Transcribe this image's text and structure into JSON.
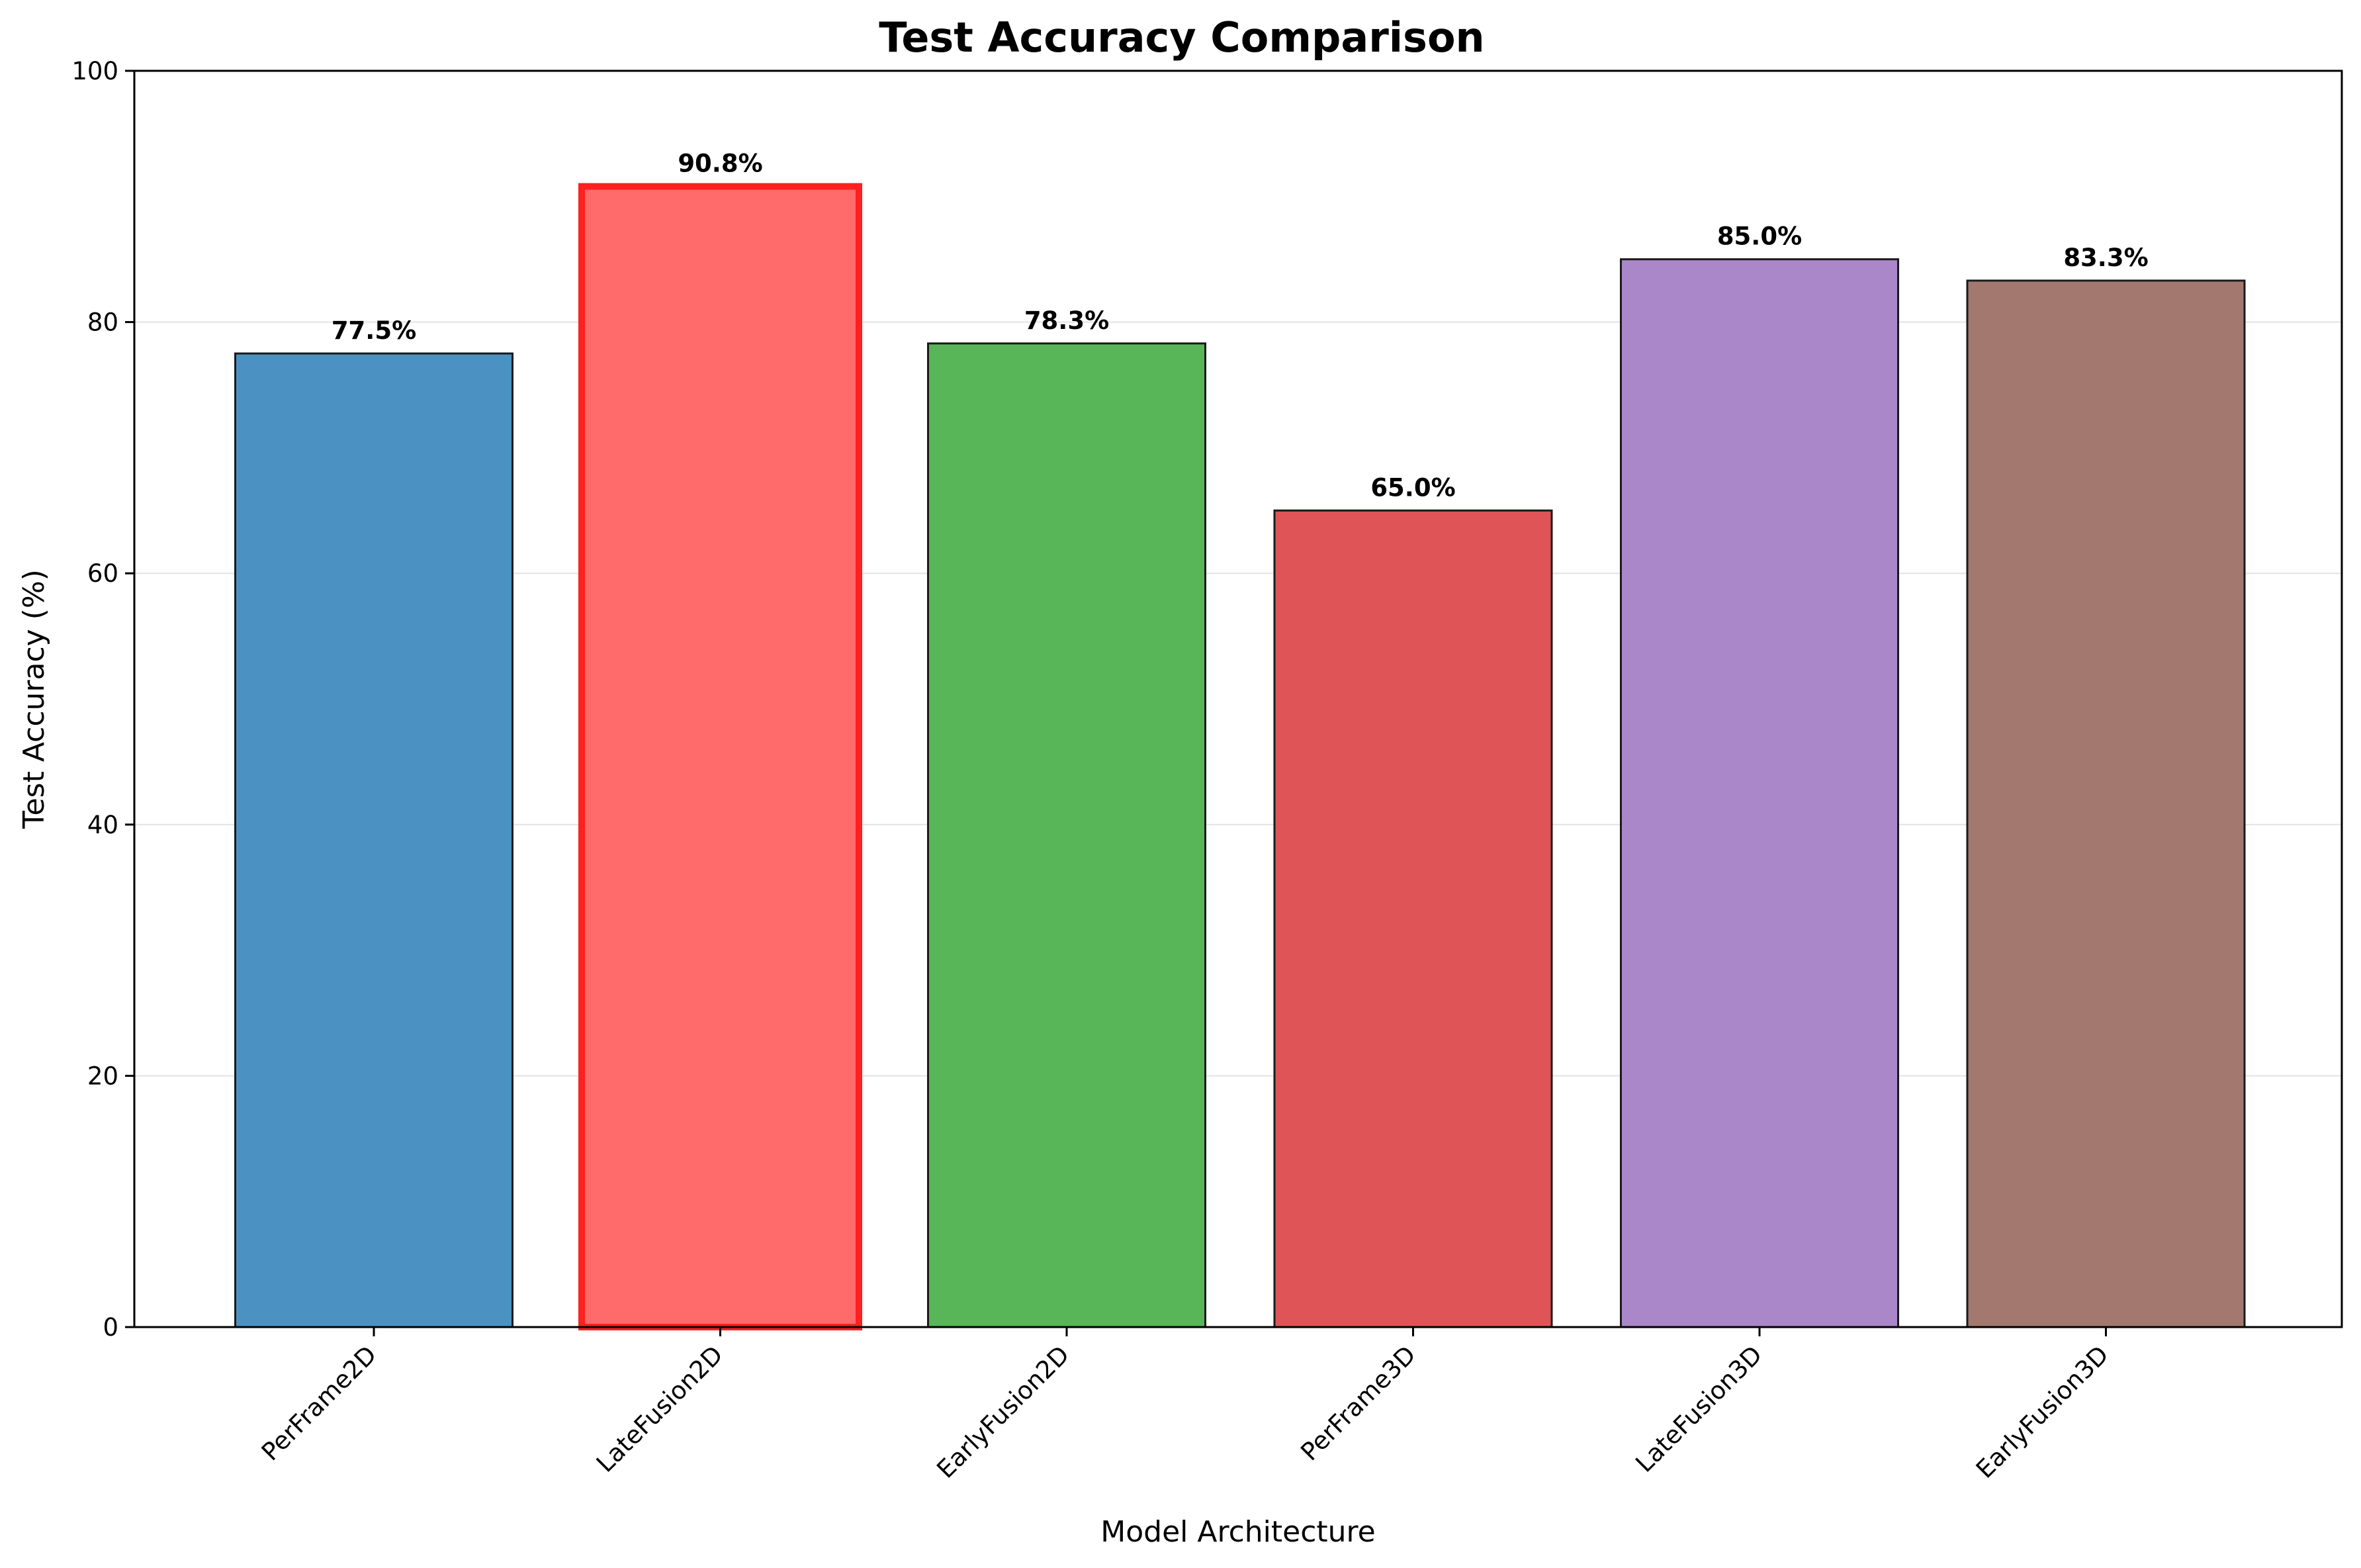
{
  "chart_data": {
    "type": "bar",
    "title": "Test Accuracy Comparison",
    "xlabel": "Model Architecture",
    "ylabel": "Test Accuracy (%)",
    "categories": [
      "PerFrame2D",
      "LateFusion2D",
      "EarlyFusion2D",
      "PerFrame3D",
      "LateFusion3D",
      "EarlyFusion3D"
    ],
    "values": [
      77.5,
      90.8,
      78.3,
      65.0,
      85.0,
      83.3
    ],
    "value_labels": [
      "77.5%",
      "90.8%",
      "78.3%",
      "65.0%",
      "85.0%",
      "83.3%"
    ],
    "colors": [
      "#4b92c3",
      "#ff6a6a",
      "#58b558",
      "#df5456",
      "#a987c9",
      "#a3786f"
    ],
    "edge_colors": [
      "#1a1a1a",
      "#ff2020",
      "#1a1a1a",
      "#1a1a1a",
      "#1a1a1a",
      "#1a1a1a"
    ],
    "highlighted_category": "LateFusion2D",
    "ylim": [
      0,
      100
    ],
    "yticks": [
      0,
      20,
      40,
      60,
      80,
      100
    ],
    "ytick_labels": [
      "0",
      "20",
      "40",
      "60",
      "80",
      "100"
    ],
    "grid": "horizontal",
    "grid_color": "#e3e3e3",
    "legend": "none"
  }
}
